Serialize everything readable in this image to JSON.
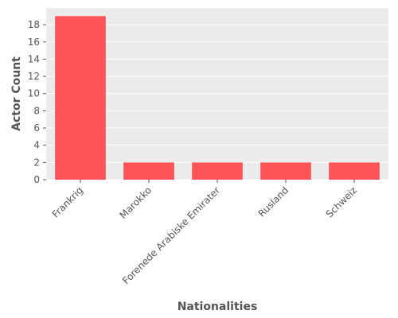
{
  "chart_data": {
    "type": "bar",
    "categories": [
      "Frankrig",
      "Marokko",
      "Forenede Arabiske Emirater",
      "Rusland",
      "Schweiz"
    ],
    "values": [
      19,
      2,
      2,
      2,
      2
    ],
    "title": "",
    "xlabel": "Nationalities",
    "ylabel": "Actor Count",
    "ylim": [
      0,
      19.95
    ],
    "yticks": [
      0,
      2,
      4,
      6,
      8,
      10,
      12,
      14,
      16,
      18
    ],
    "grid": true,
    "colors": {
      "bar": "#FF5558",
      "plot_background": "#EBEBEB",
      "grid": "#FFFFFF",
      "text": "#555555"
    }
  }
}
